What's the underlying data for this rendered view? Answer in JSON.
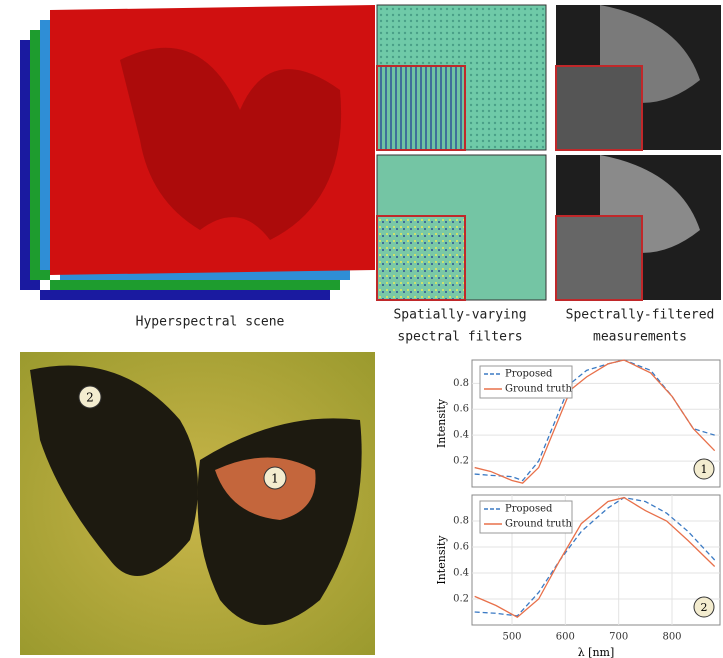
{
  "figure": {
    "scene_label": "Hyperspectral scene",
    "filter_label": [
      "Spatially-varying",
      "spectral filters"
    ],
    "measure_label": [
      "Spectrally-filtered",
      "measurements"
    ],
    "markers": [
      "1",
      "2"
    ]
  },
  "chart_data": [
    {
      "type": "line",
      "ylabel": "Intensity",
      "annotation": "1",
      "xlim": [
        425,
        890
      ],
      "ylim": [
        0,
        0.98
      ],
      "yticks": [
        0.2,
        0.4,
        0.6,
        0.8
      ],
      "grid": true,
      "x": [
        430,
        460,
        500,
        520,
        550,
        580,
        610,
        640,
        680,
        710,
        760,
        800,
        840,
        880
      ],
      "series": [
        {
          "name": "Proposed",
          "color": "#3b7ac4",
          "dash": true,
          "values": [
            0.1,
            0.09,
            0.08,
            0.05,
            0.2,
            0.5,
            0.8,
            0.9,
            0.95,
            0.98,
            0.9,
            0.7,
            0.45,
            0.4
          ]
        },
        {
          "name": "Ground truth",
          "color": "#e8704a",
          "dash": false,
          "values": [
            0.15,
            0.12,
            0.05,
            0.03,
            0.15,
            0.45,
            0.75,
            0.85,
            0.95,
            0.98,
            0.88,
            0.7,
            0.45,
            0.28
          ]
        }
      ]
    },
    {
      "type": "line",
      "ylabel": "Intensity",
      "xlabel": "λ [nm]",
      "annotation": "2",
      "xlim": [
        425,
        890
      ],
      "ylim": [
        0,
        1.0
      ],
      "xticks": [
        500,
        600,
        700,
        800
      ],
      "yticks": [
        0.2,
        0.4,
        0.6,
        0.8
      ],
      "grid": true,
      "x": [
        430,
        470,
        510,
        550,
        590,
        630,
        680,
        710,
        750,
        790,
        830,
        880
      ],
      "series": [
        {
          "name": "Proposed",
          "color": "#3b7ac4",
          "dash": true,
          "values": [
            0.1,
            0.09,
            0.07,
            0.25,
            0.5,
            0.72,
            0.9,
            0.98,
            0.95,
            0.86,
            0.72,
            0.5
          ]
        },
        {
          "name": "Ground truth",
          "color": "#e8704a",
          "dash": false,
          "values": [
            0.22,
            0.15,
            0.06,
            0.2,
            0.5,
            0.78,
            0.95,
            0.98,
            0.88,
            0.8,
            0.65,
            0.45
          ]
        }
      ]
    }
  ]
}
